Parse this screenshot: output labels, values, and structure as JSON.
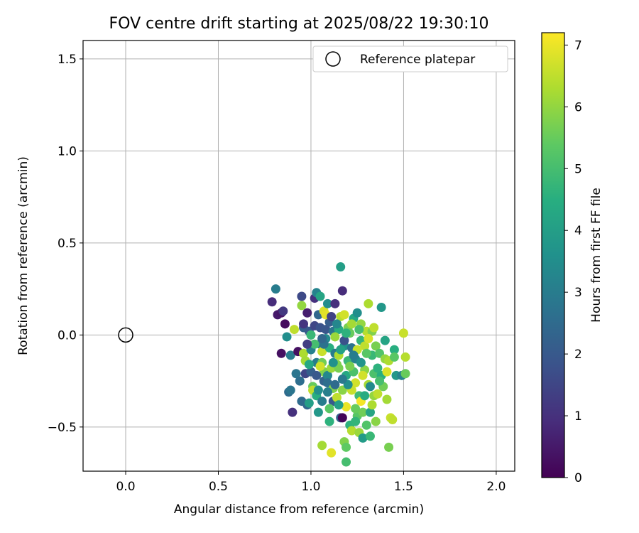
{
  "chart_data": {
    "type": "scatter",
    "title": "FOV centre drift starting at 2025/08/22 19:30:10",
    "xlabel": "Angular distance from reference (arcmin)",
    "ylabel": "Rotation from reference (arcmin)",
    "xlim": [
      -0.23,
      2.1
    ],
    "ylim": [
      -0.74,
      1.6
    ],
    "xticks": [
      0.0,
      0.5,
      1.0,
      1.5,
      2.0
    ],
    "xtick_labels": [
      "0.0",
      "0.5",
      "1.0",
      "1.5",
      "2.0"
    ],
    "yticks": [
      -0.5,
      0.0,
      0.5,
      1.0,
      1.5
    ],
    "ytick_labels": [
      "−0.5",
      "0.0",
      "0.5",
      "1.0",
      "1.5"
    ],
    "grid": true,
    "legend": {
      "placement": "upper right",
      "entries": [
        {
          "label": "Reference platepar",
          "marker": "open-circle"
        }
      ]
    },
    "reference_point": {
      "x": 0.0,
      "y": 0.0,
      "name": "Reference platepar"
    },
    "colorbar": {
      "label": "Hours from first FF file",
      "colormap": "viridis",
      "range": [
        0,
        7.2
      ],
      "ticks": [
        0,
        1,
        2,
        3,
        4,
        5,
        6,
        7
      ],
      "tick_labels": [
        "0",
        "1",
        "2",
        "3",
        "4",
        "5",
        "6",
        "7"
      ]
    },
    "points": [
      [
        0.79,
        0.18,
        0.9
      ],
      [
        0.81,
        0.25,
        3.0
      ],
      [
        0.82,
        0.11,
        0.5
      ],
      [
        0.84,
        0.12,
        0.4
      ],
      [
        0.85,
        0.13,
        1.2
      ],
      [
        0.86,
        0.06,
        0.2
      ],
      [
        0.84,
        -0.1,
        0.3
      ],
      [
        0.87,
        -0.01,
        3.5
      ],
      [
        0.89,
        -0.11,
        3.0
      ],
      [
        0.88,
        -0.31,
        2.5
      ],
      [
        0.89,
        -0.3,
        2.8
      ],
      [
        0.9,
        -0.42,
        1.0
      ],
      [
        0.91,
        0.03,
        6.5
      ],
      [
        0.92,
        -0.21,
        2.8
      ],
      [
        0.93,
        -0.09,
        0.3
      ],
      [
        0.94,
        -0.25,
        2.6
      ],
      [
        0.95,
        -0.36,
        2.5
      ],
      [
        0.95,
        0.21,
        1.6
      ],
      [
        0.95,
        0.16,
        6.0
      ],
      [
        0.96,
        0.04,
        2.2
      ],
      [
        0.96,
        -0.1,
        6.3
      ],
      [
        0.97,
        -0.14,
        6.2
      ],
      [
        0.97,
        -0.21,
        1.5
      ],
      [
        0.98,
        -0.38,
        2.4
      ],
      [
        0.98,
        0.12,
        0.6
      ],
      [
        0.99,
        0.02,
        2.0
      ],
      [
        0.99,
        -0.37,
        4.0
      ],
      [
        1.0,
        0.0,
        4.8
      ],
      [
        1.0,
        -0.08,
        3.1
      ],
      [
        1.01,
        -0.28,
        5.5
      ],
      [
        1.01,
        -0.3,
        6.5
      ],
      [
        1.02,
        0.2,
        1.0
      ],
      [
        1.02,
        0.05,
        1.5
      ],
      [
        1.03,
        0.23,
        3.2
      ],
      [
        1.03,
        -0.15,
        3.0
      ],
      [
        1.03,
        -0.33,
        4.5
      ],
      [
        1.04,
        0.11,
        2.4
      ],
      [
        1.04,
        -0.42,
        3.8
      ],
      [
        1.05,
        0.21,
        4.2
      ],
      [
        1.05,
        0.04,
        1.8
      ],
      [
        1.05,
        -0.05,
        3.1
      ],
      [
        1.06,
        -0.09,
        6.6
      ],
      [
        1.06,
        -0.15,
        5.6
      ],
      [
        1.06,
        -0.36,
        3.0
      ],
      [
        1.06,
        -0.6,
        6.2
      ],
      [
        1.07,
        -0.2,
        5.8
      ],
      [
        1.07,
        -0.25,
        2.3
      ],
      [
        1.07,
        0.13,
        6.8
      ],
      [
        1.08,
        0.03,
        1.9
      ],
      [
        1.08,
        -0.02,
        3.4
      ],
      [
        1.09,
        -0.22,
        3.3
      ],
      [
        1.09,
        0.17,
        3.5
      ],
      [
        1.09,
        -0.26,
        2.6
      ],
      [
        1.1,
        0.07,
        2.1
      ],
      [
        1.1,
        -0.47,
        4.6
      ],
      [
        1.1,
        -0.07,
        4.5
      ],
      [
        1.11,
        -0.64,
        6.9
      ],
      [
        1.11,
        -0.18,
        6.1
      ],
      [
        1.12,
        0.02,
        2.8
      ],
      [
        1.12,
        -0.36,
        2.0
      ],
      [
        1.13,
        0.17,
        1.0
      ],
      [
        1.13,
        -0.1,
        3.0
      ],
      [
        1.14,
        -0.16,
        5.8
      ],
      [
        1.14,
        -0.34,
        6.5
      ],
      [
        1.15,
        -0.18,
        5.7
      ],
      [
        1.15,
        0.03,
        4.4
      ],
      [
        1.16,
        0.37,
        4.0
      ],
      [
        1.16,
        -0.45,
        2.3
      ],
      [
        1.16,
        0.1,
        6.4
      ],
      [
        1.17,
        -0.3,
        5.9
      ],
      [
        1.17,
        0.24,
        0.9
      ],
      [
        1.17,
        -0.45,
        0.1
      ],
      [
        1.18,
        -0.06,
        3.7
      ],
      [
        1.18,
        -0.58,
        5.8
      ],
      [
        1.19,
        -0.22,
        4.3
      ],
      [
        1.19,
        -0.61,
        5.4
      ],
      [
        1.19,
        -0.39,
        7.0
      ],
      [
        1.19,
        -0.69,
        5.0
      ],
      [
        1.2,
        0.04,
        5.7
      ],
      [
        1.2,
        -0.14,
        4.8
      ],
      [
        1.21,
        0.01,
        5.5
      ],
      [
        1.21,
        -0.49,
        4.6
      ],
      [
        1.22,
        -0.07,
        2.7
      ],
      [
        1.22,
        -0.52,
        6.4
      ],
      [
        1.23,
        0.09,
        4.3
      ],
      [
        1.23,
        -0.2,
        5.1
      ],
      [
        1.24,
        -0.13,
        3.2
      ],
      [
        1.24,
        -0.26,
        6.7
      ],
      [
        1.25,
        0.12,
        3.5
      ],
      [
        1.25,
        -0.44,
        5.3
      ],
      [
        1.26,
        -0.33,
        4.9
      ],
      [
        1.26,
        -0.53,
        6.1
      ],
      [
        1.27,
        -0.36,
        7.1
      ],
      [
        1.27,
        -0.03,
        4.7
      ],
      [
        1.28,
        -0.42,
        5.6
      ],
      [
        1.28,
        -0.56,
        3.9
      ],
      [
        1.29,
        -0.06,
        6.5
      ],
      [
        1.29,
        -0.19,
        5.9
      ],
      [
        1.3,
        -0.49,
        5.2
      ],
      [
        1.3,
        0.02,
        6.4
      ],
      [
        1.31,
        0.17,
        6.3
      ],
      [
        1.31,
        -0.27,
        6.2
      ],
      [
        1.32,
        -0.42,
        4.2
      ],
      [
        1.32,
        -0.55,
        4.8
      ],
      [
        1.33,
        -0.11,
        4.8
      ],
      [
        1.33,
        0.02,
        5.8
      ],
      [
        1.34,
        -0.21,
        5.1
      ],
      [
        1.34,
        -0.33,
        6.0
      ],
      [
        1.35,
        -0.06,
        5.7
      ],
      [
        1.36,
        -0.32,
        6.5
      ],
      [
        1.37,
        -0.1,
        5.2
      ],
      [
        1.38,
        0.15,
        3.8
      ],
      [
        1.38,
        -0.22,
        4.5
      ],
      [
        1.39,
        -0.28,
        5.6
      ],
      [
        1.4,
        -0.13,
        6.0
      ],
      [
        1.41,
        -0.35,
        6.2
      ],
      [
        1.42,
        -0.61,
        5.7
      ],
      [
        1.43,
        -0.45,
        6.6
      ],
      [
        1.44,
        -0.46,
        6.5
      ],
      [
        1.45,
        -0.08,
        4.5
      ],
      [
        1.46,
        -0.22,
        3.8
      ],
      [
        1.49,
        -0.22,
        3.2
      ],
      [
        1.5,
        0.01,
        6.6
      ],
      [
        1.51,
        -0.12,
        6.4
      ],
      [
        1.51,
        -0.21,
        5.5
      ],
      [
        1.42,
        -0.14,
        6.3
      ],
      [
        1.13,
        -0.01,
        6.1
      ],
      [
        1.25,
        -0.08,
        6.6
      ],
      [
        1.18,
        0.11,
        6.7
      ],
      [
        1.22,
        -0.3,
        6.6
      ],
      [
        1.27,
        0.06,
        6.0
      ],
      [
        1.31,
        -0.02,
        6.8
      ],
      [
        1.05,
        -0.17,
        6.7
      ],
      [
        1.15,
        -0.11,
        6.3
      ],
      [
        1.36,
        -0.18,
        4.6
      ],
      [
        1.4,
        -0.03,
        4.2
      ],
      [
        1.2,
        -0.27,
        3.5
      ],
      [
        1.1,
        -0.4,
        5.3
      ],
      [
        1.08,
        0.11,
        6.9
      ],
      [
        1.24,
        -0.4,
        5.5
      ],
      [
        1.28,
        -0.22,
        6.7
      ],
      [
        1.02,
        -0.05,
        5.0
      ],
      [
        1.12,
        -0.29,
        5.8
      ],
      [
        1.33,
        -0.38,
        6.3
      ],
      [
        1.26,
        0.03,
        5.0
      ],
      [
        1.16,
        -0.08,
        4.1
      ],
      [
        1.34,
        0.04,
        6.5
      ],
      [
        1.29,
        -0.33,
        4.4
      ],
      [
        1.21,
        -0.17,
        5.7
      ],
      [
        1.14,
        0.06,
        3.3
      ],
      [
        1.0,
        -0.2,
        2.2
      ],
      [
        0.98,
        -0.05,
        1.3
      ],
      [
        1.09,
        -0.31,
        3.1
      ],
      [
        1.17,
        -0.24,
        2.9
      ],
      [
        1.23,
        -0.11,
        3.0
      ],
      [
        1.07,
        -0.05,
        2.7
      ],
      [
        1.18,
        -0.03,
        1.8
      ],
      [
        1.03,
        -0.22,
        2.0
      ],
      [
        1.12,
        -0.15,
        3.6
      ],
      [
        0.96,
        0.06,
        1.1
      ],
      [
        1.11,
        0.1,
        1.4
      ],
      [
        1.27,
        -0.15,
        3.7
      ],
      [
        1.37,
        -0.25,
        5.0
      ],
      [
        1.3,
        -0.1,
        5.3
      ],
      [
        1.19,
        0.01,
        4.6
      ],
      [
        1.06,
        -0.02,
        2.4
      ],
      [
        1.22,
        0.06,
        6.2
      ],
      [
        1.35,
        -0.47,
        5.9
      ],
      [
        1.45,
        -0.12,
        5.3
      ],
      [
        1.41,
        -0.2,
        6.8
      ],
      [
        1.32,
        -0.28,
        3.4
      ],
      [
        1.15,
        -0.38,
        4.0
      ],
      [
        1.24,
        -0.47,
        4.7
      ],
      [
        1.13,
        -0.27,
        2.5
      ],
      [
        1.04,
        -0.3,
        3.5
      ],
      [
        0.99,
        -0.16,
        4.3
      ]
    ]
  }
}
